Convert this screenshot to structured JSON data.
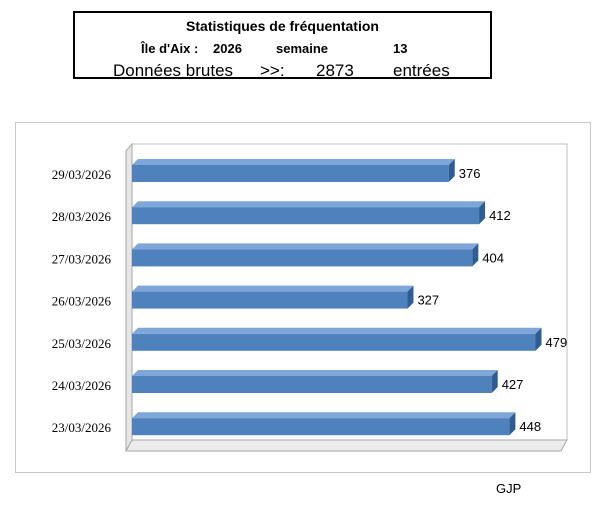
{
  "header": {
    "title": "Statistiques de  fréquentation",
    "location": "Île d'Aix :",
    "year": "2026",
    "week_label": "semaine",
    "week_number": "13",
    "raw_label": "Données brutes",
    "arrow": ">>:",
    "total": "2873",
    "unit": "entrées"
  },
  "chart_data": {
    "type": "bar",
    "orientation": "horizontal",
    "categories": [
      "29/03/2026",
      "28/03/2026",
      "27/03/2026",
      "26/03/2026",
      "25/03/2026",
      "24/03/2026",
      "23/03/2026"
    ],
    "values": [
      376,
      412,
      404,
      327,
      479,
      427,
      448
    ],
    "bar_color": "#4f81bd",
    "data_labels": true,
    "grid": false,
    "legend": "none"
  },
  "footer": {
    "credit": "GJP"
  }
}
